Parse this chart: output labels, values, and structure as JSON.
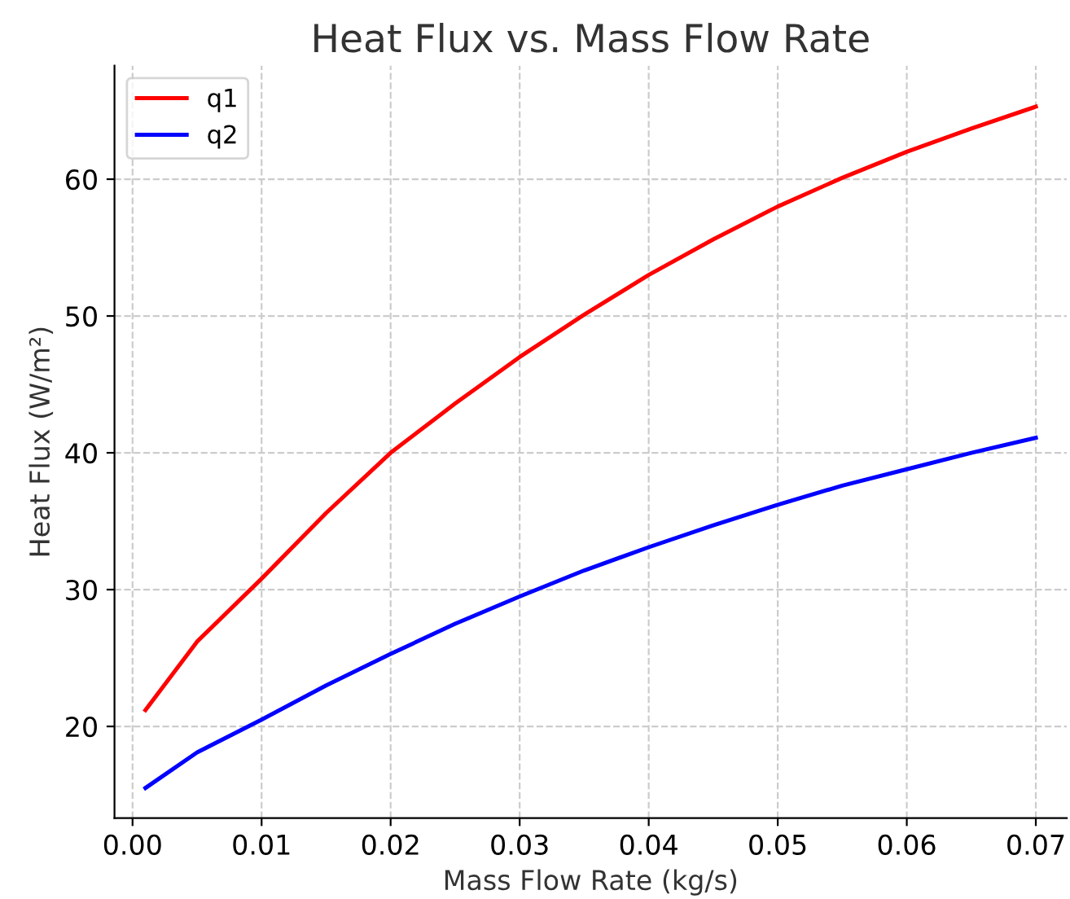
{
  "chart_data": {
    "type": "line",
    "title": "Heat Flux vs. Mass Flow Rate",
    "xlabel": "Mass Flow Rate (kg/s)",
    "ylabel": "Heat Flux (W/m²)",
    "x": [
      0.001,
      0.005,
      0.01,
      0.015,
      0.02,
      0.025,
      0.03,
      0.035,
      0.04,
      0.045,
      0.05,
      0.055,
      0.06,
      0.065,
      0.07
    ],
    "series": [
      {
        "name": "q1",
        "color": "#ff0000",
        "values": [
          21.2,
          26.2,
          30.8,
          35.6,
          40.0,
          43.6,
          47.0,
          50.1,
          53.0,
          55.6,
          58.0,
          60.1,
          62.0,
          63.7,
          65.3
        ]
      },
      {
        "name": "q2",
        "color": "#0000ff",
        "values": [
          15.5,
          18.1,
          20.5,
          23.0,
          25.3,
          27.5,
          29.5,
          31.4,
          33.1,
          34.7,
          36.2,
          37.6,
          38.8,
          40.0,
          41.1
        ]
      }
    ],
    "xlim": [
      -0.0014,
      0.0724
    ],
    "ylim": [
      13.3,
      68.3
    ],
    "xticks": [
      {
        "value": 0,
        "label": "0.00"
      },
      {
        "value": 0.01,
        "label": "0.01"
      },
      {
        "value": 0.02,
        "label": "0.02"
      },
      {
        "value": 0.03,
        "label": "0.03"
      },
      {
        "value": 0.04,
        "label": "0.04"
      },
      {
        "value": 0.05,
        "label": "0.05"
      },
      {
        "value": 0.06,
        "label": "0.06"
      },
      {
        "value": 0.07,
        "label": "0.07"
      }
    ],
    "yticks": [
      20,
      30,
      40,
      50,
      60
    ],
    "grid": true,
    "legend": "top left",
    "marker": "none",
    "line_style": "solid"
  }
}
